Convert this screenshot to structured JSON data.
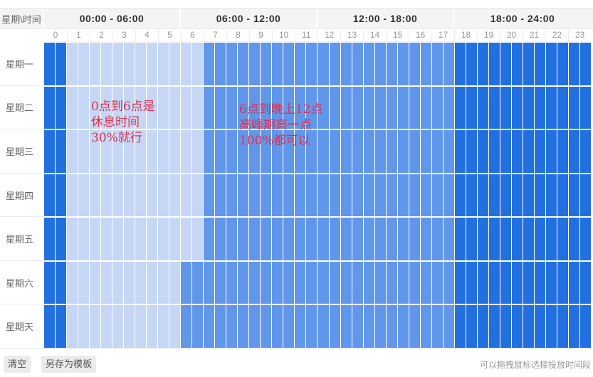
{
  "corner_label": "星期\\时间",
  "sections": [
    "00:00 - 06:00",
    "06:00 - 12:00",
    "12:00 - 18:00",
    "18:00 - 24:00"
  ],
  "hours": [
    "0",
    "1",
    "2",
    "3",
    "4",
    "5",
    "6",
    "7",
    "8",
    "9",
    "10",
    "11",
    "12",
    "13",
    "14",
    "15",
    "16",
    "17",
    "18",
    "19",
    "20",
    "21",
    "22",
    "23"
  ],
  "days": [
    "星期一",
    "星期二",
    "星期三",
    "星期四",
    "星期五",
    "星期六",
    "星期天"
  ],
  "schedule_rows": [
    {
      "day": "星期一",
      "segments": [
        [
          0,
          1,
          "high"
        ],
        [
          1,
          7,
          "low"
        ],
        [
          7,
          18,
          "medium"
        ],
        [
          18,
          24,
          "high"
        ]
      ]
    },
    {
      "day": "星期二",
      "segments": [
        [
          0,
          1,
          "high"
        ],
        [
          1,
          7,
          "low"
        ],
        [
          7,
          18,
          "medium"
        ],
        [
          18,
          24,
          "high"
        ]
      ]
    },
    {
      "day": "星期三",
      "segments": [
        [
          0,
          1,
          "high"
        ],
        [
          1,
          7,
          "low"
        ],
        [
          7,
          18,
          "medium"
        ],
        [
          18,
          24,
          "high"
        ]
      ]
    },
    {
      "day": "星期四",
      "segments": [
        [
          0,
          1,
          "high"
        ],
        [
          1,
          7,
          "low"
        ],
        [
          7,
          18,
          "medium"
        ],
        [
          18,
          24,
          "high"
        ]
      ]
    },
    {
      "day": "星期五",
      "segments": [
        [
          0,
          1,
          "high"
        ],
        [
          1,
          7,
          "low"
        ],
        [
          7,
          18,
          "medium"
        ],
        [
          18,
          24,
          "high"
        ]
      ]
    },
    {
      "day": "星期六",
      "segments": [
        [
          0,
          1,
          "high"
        ],
        [
          1,
          6,
          "low"
        ],
        [
          6,
          18,
          "medium"
        ],
        [
          18,
          24,
          "high"
        ]
      ]
    },
    {
      "day": "星期天",
      "segments": [
        [
          0,
          1,
          "high"
        ],
        [
          1,
          6,
          "low"
        ],
        [
          6,
          18,
          "medium"
        ],
        [
          18,
          24,
          "high"
        ]
      ]
    }
  ],
  "annotations": [
    {
      "text": "0点到6点是\n休息时间\n30%就行"
    },
    {
      "text": "6点到晚上12点\n高峰期高一点\n100%都可以"
    }
  ],
  "buttons": {
    "clear": "清空",
    "save_as_template": "另存为模板"
  },
  "tip": "可以拖拽鼠标选择投放时间段",
  "colors": {
    "high": "#2270e0",
    "medium": "#6197ea",
    "low": "#c5d7f5",
    "annotation": "#e03050"
  }
}
